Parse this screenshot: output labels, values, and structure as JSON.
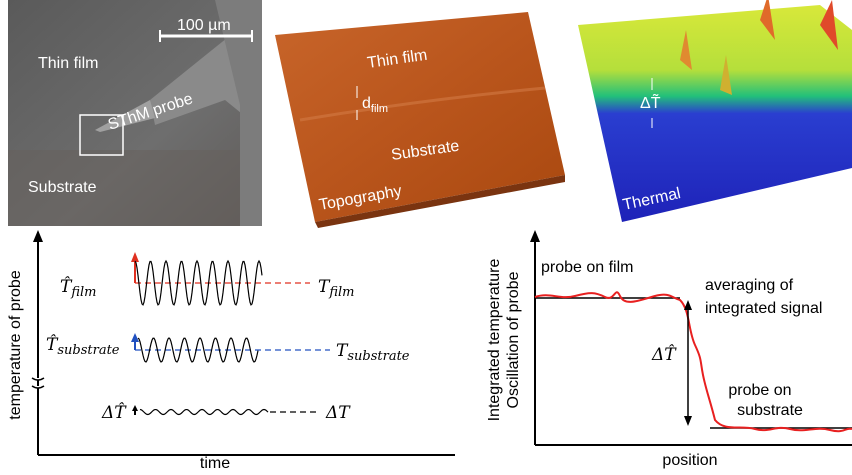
{
  "sem": {
    "scale_bar": "100 µm",
    "film": "Thin film",
    "probe": "SThM probe",
    "substrate": "Substrate"
  },
  "topography": {
    "film": "Thin film",
    "d": "d",
    "d_sub": "film",
    "substrate": "Substrate",
    "label": "Topography"
  },
  "thermal": {
    "delta": "ΔT̃",
    "label": "Thermal"
  },
  "time_plot": {
    "y_label": "temperature of probe",
    "x_label": "time",
    "film_amp": {
      "main": "T̂",
      "sub": "film"
    },
    "film_mean": {
      "main": "T",
      "sub": "film"
    },
    "substrate_amp": {
      "main": "T̂",
      "sub": "substrate"
    },
    "substrate_mean": {
      "main": "T",
      "sub": "substrate"
    },
    "delta_amp": "ΔT̂",
    "delta_mean": "ΔT"
  },
  "position_plot": {
    "y_label_1": "Integrated temperature",
    "y_label_2": "Oscillation of probe",
    "x_label": "position",
    "film": "probe on film",
    "averaging": [
      "averaging of",
      "integrated signal"
    ],
    "delta": "ΔT̂",
    "substrate": [
      "probe on",
      "substrate"
    ]
  }
}
